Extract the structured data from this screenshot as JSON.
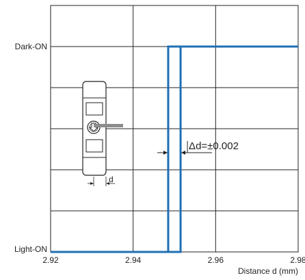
{
  "chart_data": {
    "type": "line",
    "xlabel": "Distance d (mm)",
    "ylabel": "",
    "xlim": [
      2.92,
      2.98
    ],
    "x_ticks": [
      "2.92",
      "2.94",
      "2.96",
      "2.98"
    ],
    "y_states": [
      "Light-ON",
      "Dark-ON"
    ],
    "grid": true,
    "series": [
      {
        "color": "#1f6fb3",
        "points": [
          {
            "x": 2.92,
            "y": "Light-ON"
          },
          {
            "x": 2.9485,
            "y": "Light-ON"
          },
          {
            "x": 2.9485,
            "y": "Dark-ON"
          },
          {
            "x": 2.98,
            "y": "Dark-ON"
          }
        ]
      },
      {
        "color": "#1f6fb3",
        "points": [
          {
            "x": 2.92,
            "y": "Light-ON"
          },
          {
            "x": 2.9515,
            "y": "Light-ON"
          },
          {
            "x": 2.9515,
            "y": "Dark-ON"
          },
          {
            "x": 2.98,
            "y": "Dark-ON"
          }
        ]
      }
    ],
    "annotation": {
      "text": "Δd=±0.002",
      "between_x": [
        2.9485,
        2.9515
      ]
    },
    "inset": {
      "label": "d"
    }
  }
}
